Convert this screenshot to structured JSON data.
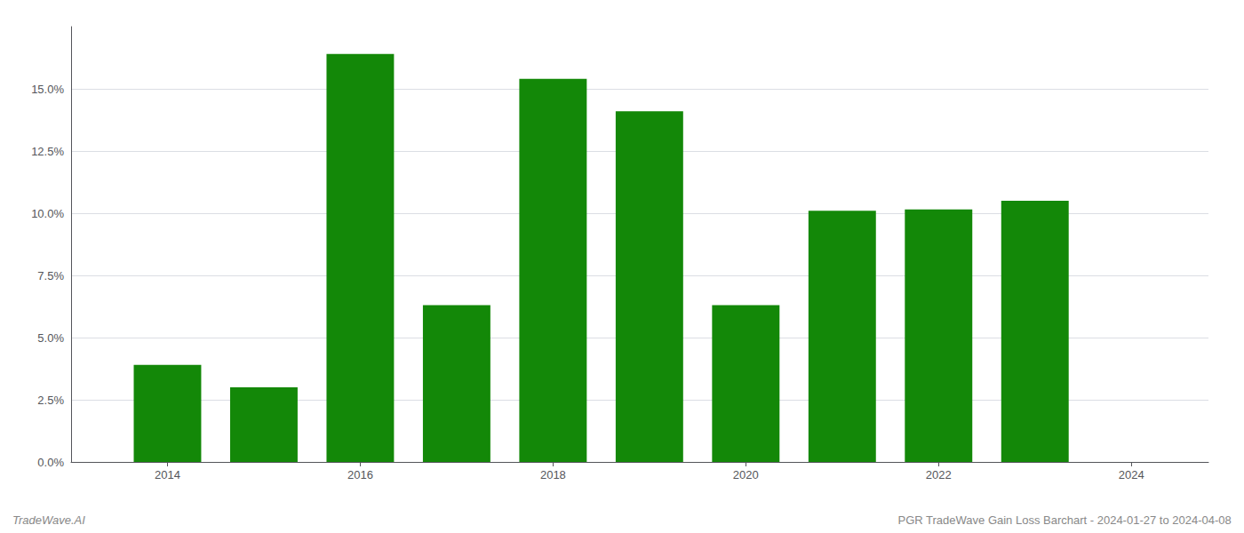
{
  "chart_data": {
    "type": "bar",
    "x": [
      2014,
      2015,
      2016,
      2017,
      2018,
      2019,
      2020,
      2021,
      2022,
      2023
    ],
    "values": [
      0.039,
      0.03,
      0.164,
      0.063,
      0.154,
      0.141,
      0.063,
      0.101,
      0.1015,
      0.105
    ],
    "color": "#138808",
    "xlim": [
      2013.0,
      2024.8
    ],
    "xticks": [
      2014,
      2016,
      2018,
      2020,
      2022,
      2024
    ],
    "ylim": [
      0,
      0.175
    ],
    "yticks": [
      {
        "value": 0.0,
        "label": "0.0%"
      },
      {
        "value": 0.025,
        "label": "2.5%"
      },
      {
        "value": 0.05,
        "label": "5.0%"
      },
      {
        "value": 0.075,
        "label": "7.5%"
      },
      {
        "value": 0.1,
        "label": "10.0%"
      },
      {
        "value": 0.125,
        "label": "12.5%"
      },
      {
        "value": 0.15,
        "label": "15.0%"
      }
    ],
    "grid": true,
    "annotations": [
      "TradeWave.AI",
      "PGR TradeWave Gain Loss Barchart - 2024-01-27 to 2024-04-08"
    ]
  }
}
